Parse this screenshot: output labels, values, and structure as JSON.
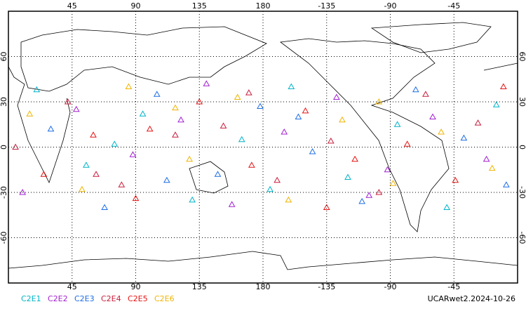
{
  "chart_data": {
    "type": "scatter",
    "xlim": [
      0,
      360
    ],
    "ylim": [
      -90,
      90
    ],
    "xticks": [
      45,
      90,
      135,
      180,
      {
        "value": 225,
        "label": "-135"
      },
      {
        "value": 270,
        "label": "-90"
      },
      {
        "value": 315,
        "label": "-45"
      }
    ],
    "yticks": [
      -60,
      -30,
      0,
      30,
      60
    ],
    "grid": true,
    "annotation": "UCARwet2.2024-10-26",
    "series": [
      {
        "name": "C2E1",
        "color": "#00b4c8",
        "x": [
          20,
          55,
          95,
          130,
          165,
          200,
          240,
          275,
          310,
          345,
          75,
          185
        ],
        "values": [
          38,
          -12,
          22,
          -35,
          5,
          40,
          -20,
          15,
          -40,
          28,
          2,
          -28
        ]
      },
      {
        "name": "C2E2",
        "color": "#a020d0",
        "x": [
          10,
          48,
          88,
          122,
          158,
          195,
          232,
          268,
          300,
          338,
          140,
          255
        ],
        "values": [
          -30,
          25,
          -5,
          18,
          -38,
          10,
          33,
          -15,
          20,
          -8,
          42,
          -32
        ]
      },
      {
        "name": "C2E3",
        "color": "#1e6ee6",
        "x": [
          30,
          68,
          105,
          148,
          178,
          215,
          250,
          288,
          322,
          352,
          112,
          205
        ],
        "values": [
          12,
          -40,
          35,
          -18,
          27,
          -3,
          -36,
          38,
          6,
          -25,
          -22,
          20
        ]
      },
      {
        "name": "C2E4",
        "color": "#c81e3c",
        "x": [
          5,
          42,
          80,
          118,
          152,
          190,
          228,
          262,
          295,
          332,
          62,
          170
        ],
        "values": [
          0,
          30,
          -25,
          8,
          14,
          -22,
          4,
          -30,
          35,
          16,
          -18,
          36
        ]
      },
      {
        "name": "C2E5",
        "color": "#e61414",
        "x": [
          25,
          60,
          100,
          135,
          172,
          210,
          245,
          282,
          316,
          350,
          90,
          225
        ],
        "values": [
          -18,
          8,
          12,
          30,
          -12,
          24,
          -8,
          2,
          -22,
          40,
          -34,
          -40
        ]
      },
      {
        "name": "C2E6",
        "color": "#f0b400",
        "x": [
          15,
          52,
          85,
          128,
          162,
          198,
          236,
          272,
          306,
          342,
          118,
          262
        ],
        "values": [
          22,
          -28,
          40,
          -8,
          33,
          -35,
          18,
          -24,
          10,
          -14,
          26,
          30
        ]
      }
    ]
  }
}
